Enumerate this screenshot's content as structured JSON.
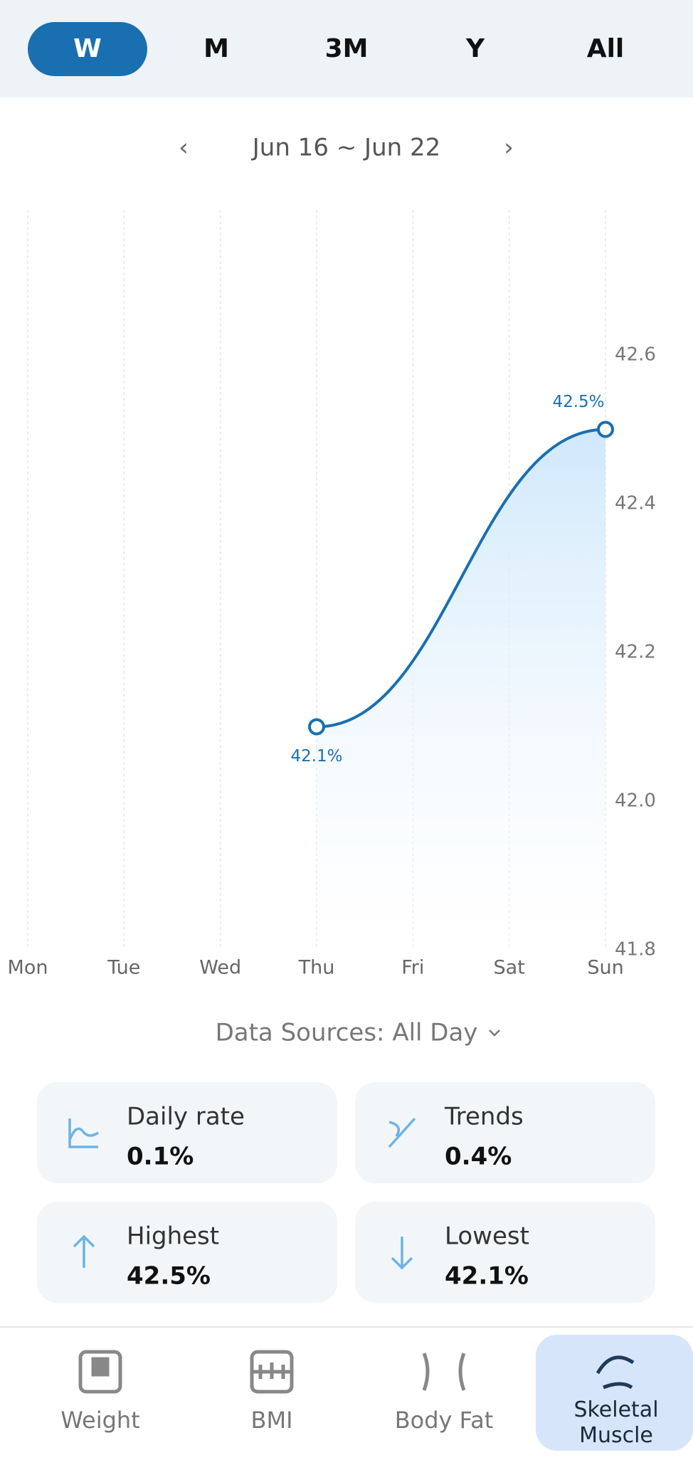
{
  "tabs": [
    "W",
    "M",
    "3M",
    "Y",
    "All"
  ],
  "date_range": "Jun 16 ~ Jun 22",
  "chart_data": {
    "type": "line",
    "categories": [
      "Mon",
      "Tue",
      "Wed",
      "Thu",
      "Fri",
      "Sat",
      "Sun"
    ],
    "series": [
      {
        "color": "#1a6fb0",
        "x": [
          "Thu",
          "Sun"
        ],
        "values": [
          42.1,
          42.5
        ],
        "value_labels": [
          "42.1%",
          "42.5%"
        ]
      }
    ],
    "ylim": [
      41.8,
      42.8
    ],
    "yticks": [
      41.8,
      {
        "value": 42.0,
        "label": "42.0"
      },
      42.2,
      42.4,
      42.6
    ],
    "grid": true
  },
  "data_sources": "Data Sources: All Day",
  "stats": [
    {
      "label": "Daily rate",
      "value": "0.1%"
    },
    {
      "label": "Trends",
      "value": "0.4%"
    },
    {
      "label": "Highest",
      "value": "42.5%"
    },
    {
      "label": "Lowest",
      "value": "42.1%"
    }
  ],
  "nav": [
    "Weight",
    "BMI",
    "Body Fat",
    "Skeletal Muscle"
  ]
}
